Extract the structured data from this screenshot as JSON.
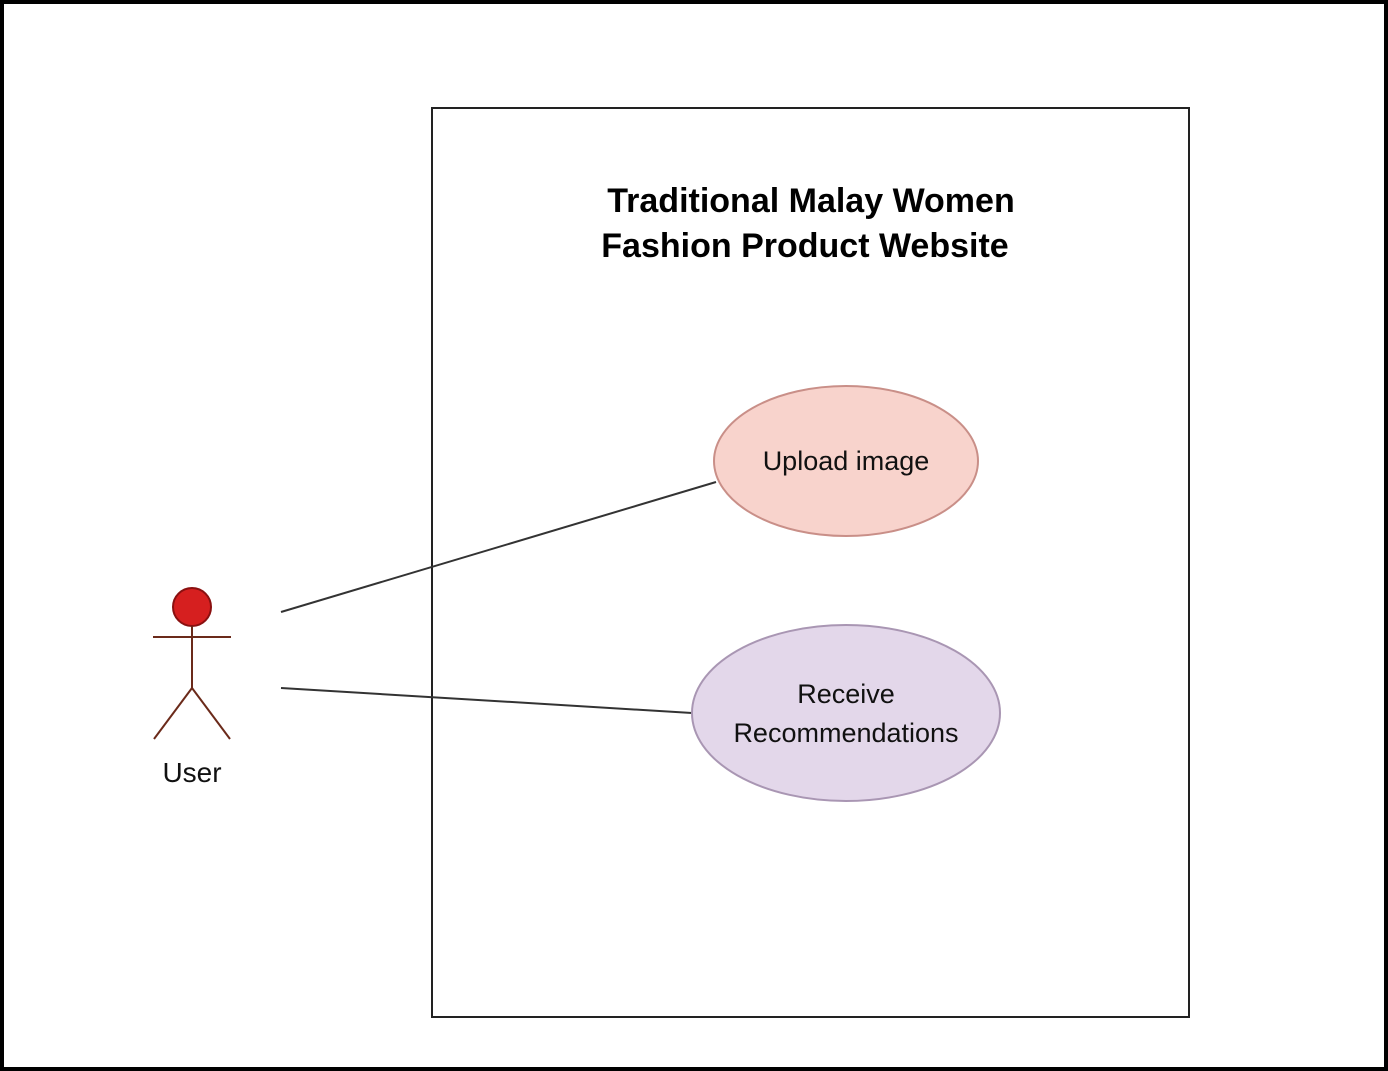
{
  "system": {
    "title_line1": "Traditional Malay Women",
    "title_line2": "Fashion Product Website"
  },
  "actor": {
    "label": "User",
    "head_color": "#d61f1f"
  },
  "use_cases": {
    "upload": {
      "label": "Upload image",
      "fill": "#f8d3cc"
    },
    "receive": {
      "line1": "Receive",
      "line2": "Recommendations",
      "fill": "#e3d7ea"
    }
  },
  "colors": {
    "stroke": "#333333",
    "actor_stroke": "#6b2a1a"
  }
}
